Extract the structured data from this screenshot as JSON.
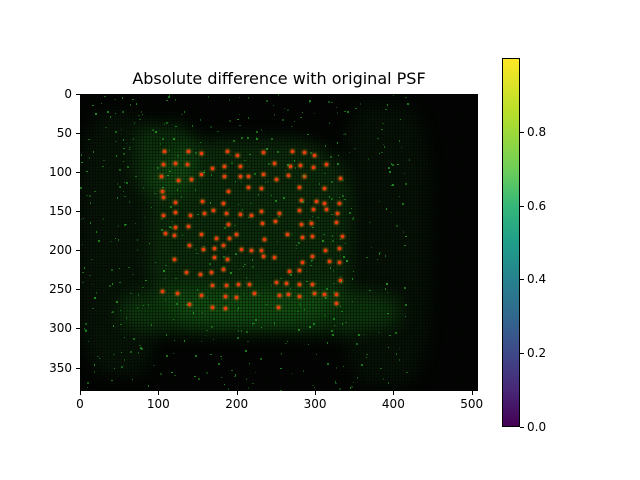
{
  "chart_data": {
    "type": "heatmap",
    "title": "Absolute difference with original PSF",
    "xlabel": "",
    "ylabel": "",
    "xlim": [
      0,
      508
    ],
    "ylim": [
      380,
      0
    ],
    "x_ticks": [
      "0",
      "100",
      "200",
      "300",
      "400",
      "500"
    ],
    "y_ticks": [
      "0",
      "50",
      "100",
      "150",
      "200",
      "250",
      "300",
      "350"
    ],
    "colorbar": {
      "colormap": "viridis",
      "range": [
        0.0,
        1.0
      ],
      "ticks": [
        "0.0",
        "0.2",
        "0.4",
        "0.6",
        "0.8"
      ]
    },
    "description": "Dark image with green difference haze concentrated in a square region (~x 100-340, y 70-290) and a lattice of red/orange point spots; faint green noise elsewhere, right side nearly black.",
    "colors": {
      "background": "#030503",
      "haze": "#1c8a1c",
      "spot": "#ff3a10"
    }
  },
  "grid": false
}
